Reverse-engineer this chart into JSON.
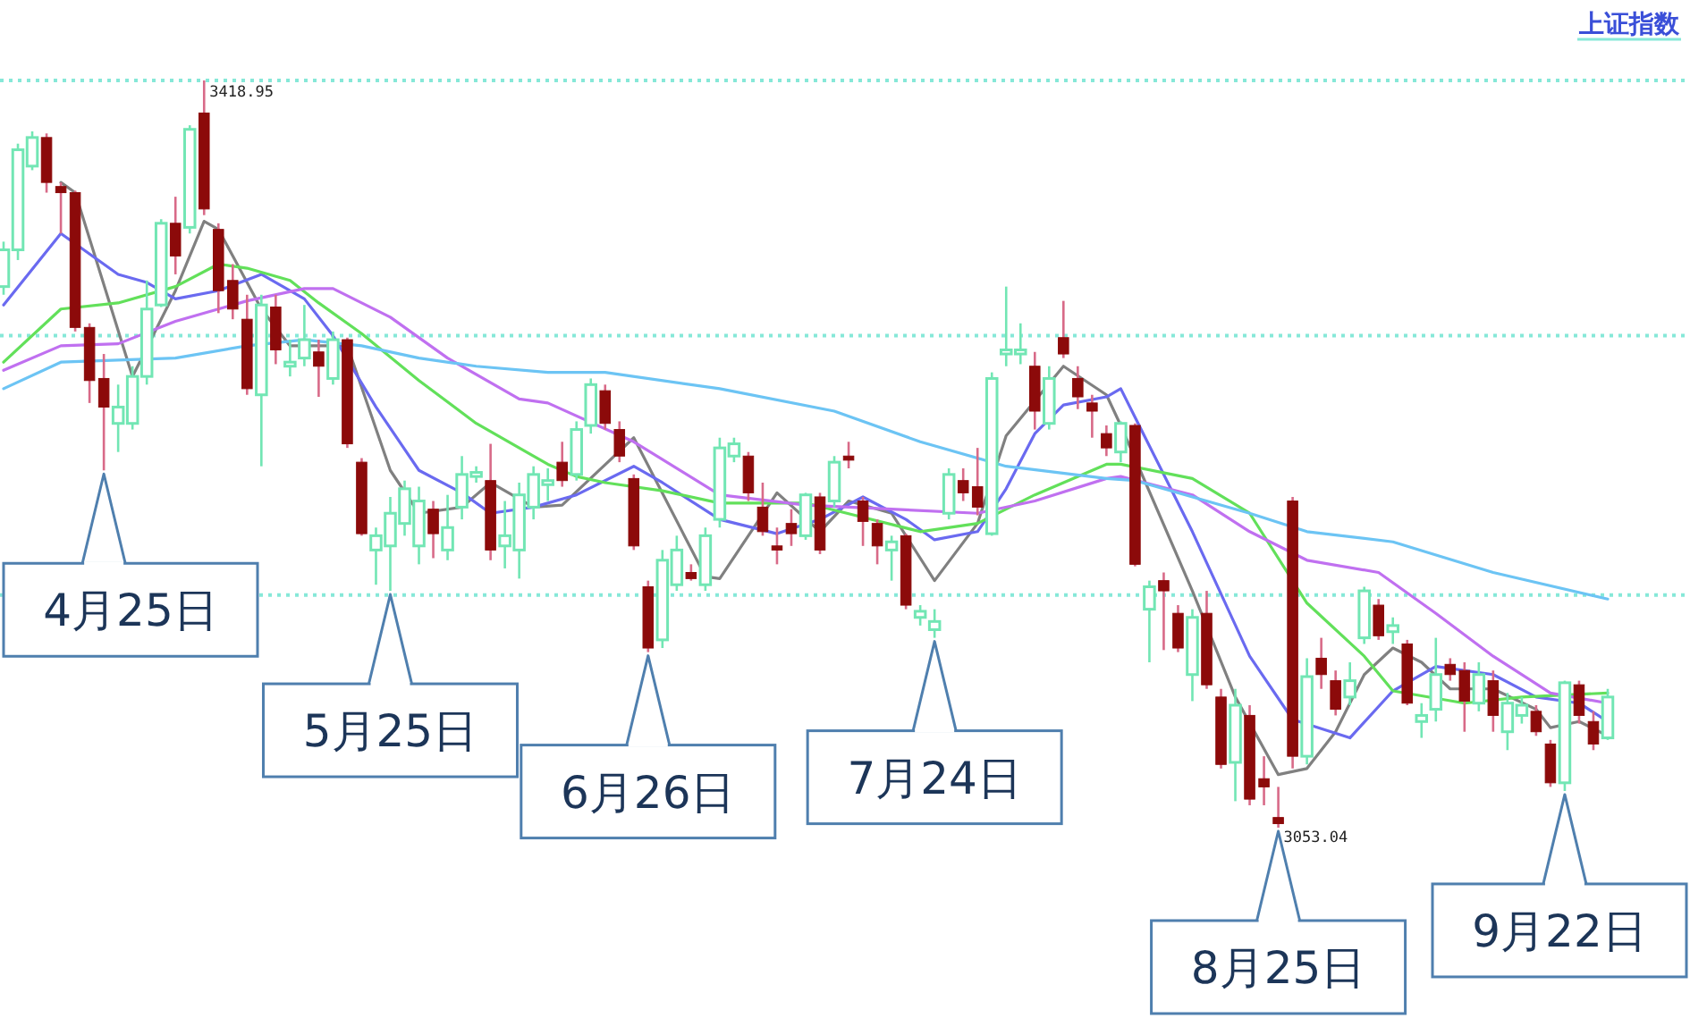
{
  "chart_data": {
    "type": "candlestick",
    "title": "上证指数",
    "categories": [
      null,
      null,
      null,
      null,
      null,
      null,
      null,
      null,
      null,
      null,
      null,
      null,
      null,
      null,
      null,
      null,
      null,
      null,
      null,
      null,
      null,
      null,
      null,
      null,
      null,
      null,
      null,
      null,
      null,
      null,
      null,
      null,
      null,
      null,
      null,
      null,
      null,
      null,
      null,
      null,
      null,
      null,
      null,
      null,
      null,
      null,
      null,
      null,
      null,
      null,
      null,
      null,
      null,
      null,
      null,
      null,
      null,
      null,
      null,
      null,
      null,
      null,
      null,
      null,
      null,
      null,
      null,
      null,
      null,
      null,
      null,
      null,
      null,
      null,
      null,
      null,
      null,
      null,
      null,
      null,
      null,
      null,
      null,
      null,
      null,
      null,
      null,
      null,
      null,
      null,
      null,
      null,
      null,
      null,
      null,
      null,
      null,
      null,
      null,
      null,
      null,
      null,
      null,
      null,
      null,
      null,
      null,
      null,
      null,
      null,
      null,
      null,
      null
    ],
    "ohlc": [
      [
        3318,
        3340,
        3314,
        3336
      ],
      [
        3336,
        3388,
        3331,
        3385
      ],
      [
        3377,
        3394,
        3375,
        3391
      ],
      [
        3391,
        3393,
        3364,
        3369
      ],
      [
        3367,
        3369,
        3344,
        3364
      ],
      [
        3364,
        3365,
        3296,
        3298
      ],
      [
        3298,
        3300,
        3261,
        3272
      ],
      [
        3273,
        3285,
        3228,
        3259
      ],
      [
        3251,
        3270,
        3237,
        3259
      ],
      [
        3251,
        3279,
        3248,
        3274
      ],
      [
        3274,
        3321,
        3270,
        3307
      ],
      [
        3309,
        3351,
        3308,
        3349
      ],
      [
        3349,
        3362,
        3324,
        3333
      ],
      [
        3347,
        3397,
        3344,
        3395
      ],
      [
        3403,
        3418.95,
        3353,
        3356
      ],
      [
        3346,
        3349,
        3305,
        3316
      ],
      [
        3321,
        3329,
        3302,
        3307
      ],
      [
        3302,
        3314,
        3265,
        3268
      ],
      [
        3265,
        3314,
        3230,
        3309
      ],
      [
        3308,
        3314,
        3280,
        3287
      ],
      [
        3279,
        3292,
        3274,
        3281
      ],
      [
        3283,
        3309,
        3279,
        3292
      ],
      [
        3286,
        3292,
        3264,
        3279
      ],
      [
        3273,
        3296,
        3270,
        3292
      ],
      [
        3292,
        3293,
        3239,
        3241
      ],
      [
        3232,
        3234,
        3196,
        3197
      ],
      [
        3189,
        3200,
        3172,
        3196
      ],
      [
        3191,
        3215,
        3169,
        3207
      ],
      [
        3202,
        3223,
        3196,
        3219
      ],
      [
        3191,
        3220,
        3182,
        3213
      ],
      [
        3209,
        3213,
        3185,
        3197
      ],
      [
        3189,
        3216,
        3184,
        3200
      ],
      [
        3210,
        3235,
        3204,
        3226
      ],
      [
        3225,
        3230,
        3222,
        3227
      ],
      [
        3223,
        3241,
        3184,
        3189
      ],
      [
        3191,
        3213,
        3180,
        3196
      ],
      [
        3189,
        3222,
        3175,
        3216
      ],
      [
        3210,
        3230,
        3204,
        3226
      ],
      [
        3221,
        3229,
        3213,
        3223
      ],
      [
        3232,
        3242,
        3220,
        3223
      ],
      [
        3226,
        3252,
        3223,
        3248
      ],
      [
        3250,
        3273,
        3246,
        3270
      ],
      [
        3267,
        3270,
        3248,
        3251
      ],
      [
        3248,
        3252,
        3232,
        3235
      ],
      [
        3224,
        3226,
        3189,
        3191
      ],
      [
        3171,
        3174,
        3139,
        3141
      ],
      [
        3145,
        3189,
        3141,
        3184
      ],
      [
        3172,
        3196,
        3169,
        3189
      ],
      [
        3178,
        3182,
        3174,
        3175
      ],
      [
        3172,
        3200,
        3169,
        3196
      ],
      [
        3204,
        3244,
        3200,
        3239
      ],
      [
        3235,
        3244,
        3232,
        3241
      ],
      [
        3235,
        3237,
        3213,
        3217
      ],
      [
        3210,
        3222,
        3196,
        3198
      ],
      [
        3191,
        3200,
        3182,
        3189
      ],
      [
        3202,
        3209,
        3191,
        3197
      ],
      [
        3196,
        3217,
        3194,
        3216
      ],
      [
        3215,
        3217,
        3187,
        3189
      ],
      [
        3213,
        3235,
        3210,
        3232
      ],
      [
        3235,
        3242,
        3229,
        3233
      ],
      [
        3213,
        3215,
        3191,
        3203
      ],
      [
        3202,
        3204,
        3182,
        3191
      ],
      [
        3189,
        3196,
        3174,
        3193
      ],
      [
        3196,
        3197,
        3160,
        3162
      ],
      [
        3156,
        3162,
        3152,
        3159
      ],
      [
        3150,
        3160,
        3146,
        3154
      ],
      [
        3207,
        3229,
        3204,
        3226
      ],
      [
        3223,
        3229,
        3213,
        3217
      ],
      [
        3220,
        3239,
        3206,
        3210
      ],
      [
        3197,
        3276,
        3196,
        3273
      ],
      [
        3285,
        3318,
        3279,
        3287
      ],
      [
        3285,
        3300,
        3280,
        3287
      ],
      [
        3279,
        3286,
        3248,
        3257
      ],
      [
        3251,
        3279,
        3248,
        3273
      ],
      [
        3293,
        3311,
        3283,
        3285
      ],
      [
        3273,
        3279,
        3258,
        3264
      ],
      [
        3261,
        3265,
        3244,
        3257
      ],
      [
        3246,
        3250,
        3235,
        3239
      ],
      [
        3237,
        3252,
        3232,
        3251
      ],
      [
        3250,
        3251,
        3181,
        3182
      ],
      [
        3160,
        3174,
        3134,
        3171
      ],
      [
        3174,
        3178,
        3140,
        3169
      ],
      [
        3158,
        3162,
        3139,
        3141
      ],
      [
        3128,
        3160,
        3115,
        3156
      ],
      [
        3158,
        3169,
        3121,
        3123
      ],
      [
        3117,
        3121,
        3082,
        3084
      ],
      [
        3085,
        3121,
        3066,
        3113
      ],
      [
        3108,
        3113,
        3064,
        3067
      ],
      [
        3077,
        3088,
        3064,
        3073
      ],
      [
        3058,
        3073,
        3053.04,
        3055
      ],
      [
        3213,
        3215,
        3082,
        3088
      ],
      [
        3088,
        3136,
        3084,
        3127
      ],
      [
        3136,
        3146,
        3121,
        3128
      ],
      [
        3125,
        3130,
        3108,
        3111
      ],
      [
        3117,
        3134,
        3113,
        3125
      ],
      [
        3146,
        3171,
        3143,
        3169
      ],
      [
        3162,
        3165,
        3145,
        3147
      ],
      [
        3149,
        3156,
        3143,
        3152
      ],
      [
        3143,
        3145,
        3113,
        3114
      ],
      [
        3105,
        3114,
        3097,
        3108
      ],
      [
        3111,
        3146,
        3105,
        3128
      ],
      [
        3133,
        3136,
        3125,
        3128
      ],
      [
        3130,
        3134,
        3100,
        3115
      ],
      [
        3114,
        3134,
        3110,
        3128
      ],
      [
        3125,
        3130,
        3100,
        3108
      ],
      [
        3100,
        3119,
        3091,
        3114
      ],
      [
        3108,
        3117,
        3104,
        3113
      ],
      [
        3110,
        3113,
        3098,
        3100
      ],
      [
        3094,
        3096,
        3073,
        3075
      ],
      [
        3075,
        3125,
        3071,
        3124
      ],
      [
        3123,
        3125,
        3104,
        3108
      ],
      [
        3105,
        3110,
        3091,
        3094
      ],
      [
        3097,
        3121,
        3096,
        3117
      ]
    ],
    "colors": [
      "#72e6b4",
      "#72e6b4",
      "#72e6b4",
      "#8c0a0a",
      "#8c0a0a",
      "#8c0a0a",
      "#8c0a0a",
      "#8c0a0a",
      "#72e6b4",
      "#72e6b4",
      "#72e6b4",
      "#72e6b4",
      "#8c0a0a",
      "#72e6b4",
      "#8c0a0a",
      "#8c0a0a",
      "#8c0a0a",
      "#8c0a0a",
      "#72e6b4",
      "#8c0a0a",
      "#72e6b4",
      "#72e6b4",
      "#8c0a0a",
      "#72e6b4",
      "#8c0a0a",
      "#8c0a0a",
      "#72e6b4",
      "#72e6b4",
      "#72e6b4",
      "#72e6b4",
      "#8c0a0a",
      "#72e6b4",
      "#72e6b4",
      "#72e6b4",
      "#8c0a0a",
      "#72e6b4",
      "#72e6b4",
      "#72e6b4",
      "#72e6b4",
      "#8c0a0a",
      "#72e6b4",
      "#72e6b4",
      "#8c0a0a",
      "#8c0a0a",
      "#8c0a0a",
      "#8c0a0a",
      "#72e6b4",
      "#72e6b4",
      "#8c0a0a",
      "#72e6b4",
      "#72e6b4",
      "#72e6b4",
      "#8c0a0a",
      "#8c0a0a",
      "#8c0a0a",
      "#8c0a0a",
      "#72e6b4",
      "#8c0a0a",
      "#72e6b4",
      "#8c0a0a",
      "#8c0a0a",
      "#8c0a0a",
      "#72e6b4",
      "#8c0a0a",
      "#72e6b4",
      "#72e6b4",
      "#72e6b4",
      "#8c0a0a",
      "#8c0a0a",
      "#72e6b4",
      "#72e6b4",
      "#72e6b4",
      "#8c0a0a",
      "#72e6b4",
      "#8c0a0a",
      "#8c0a0a",
      "#8c0a0a",
      "#8c0a0a",
      "#72e6b4",
      "#8c0a0a",
      "#72e6b4",
      "#8c0a0a",
      "#8c0a0a",
      "#72e6b4",
      "#8c0a0a",
      "#8c0a0a",
      "#72e6b4",
      "#8c0a0a",
      "#8c0a0a",
      "#8c0a0a",
      "#8c0a0a",
      "#72e6b4",
      "#8c0a0a",
      "#8c0a0a",
      "#72e6b4",
      "#72e6b4",
      "#8c0a0a",
      "#72e6b4",
      "#8c0a0a",
      "#72e6b4",
      "#72e6b4",
      "#8c0a0a",
      "#8c0a0a",
      "#72e6b4",
      "#8c0a0a",
      "#72e6b4",
      "#72e6b4",
      "#8c0a0a",
      "#8c0a0a",
      "#72e6b4",
      "#8c0a0a",
      "#8c0a0a",
      "#72e6b4"
    ],
    "value_labels": [
      null,
      null,
      null,
      null,
      null,
      null,
      null,
      null,
      null,
      null,
      null,
      null,
      null,
      null,
      "3418.95",
      null,
      null,
      null,
      null,
      null,
      null,
      null,
      null,
      null,
      null,
      null,
      null,
      null,
      null,
      null,
      null,
      null,
      null,
      null,
      null,
      null,
      null,
      null,
      null,
      null,
      null,
      null,
      null,
      null,
      null,
      null,
      null,
      null,
      null,
      null,
      null,
      null,
      null,
      null,
      null,
      null,
      null,
      null,
      null,
      null,
      null,
      null,
      null,
      null,
      null,
      null,
      null,
      null,
      null,
      null,
      null,
      null,
      null,
      null,
      null,
      null,
      null,
      null,
      null,
      null,
      null,
      null,
      null,
      null,
      null,
      null,
      null,
      null,
      null,
      "3053.04",
      null,
      null,
      null,
      null,
      null,
      null,
      null,
      null,
      null,
      null,
      null,
      null,
      null,
      null,
      null,
      null,
      null,
      null,
      null,
      null,
      null,
      null,
      null
    ],
    "yticks": [
      {
        "value": 3419,
        "label": null
      },
      {
        "value": 3294,
        "label": null
      },
      {
        "value": 3167,
        "label": null
      }
    ],
    "grid": "y",
    "annotations": [
      "4月25日",
      "5月25日",
      "6月26日",
      "7月24日",
      "8月25日",
      "9月22日"
    ],
    "series": [
      {
        "type": "line",
        "color": "#808080",
        "values": [
          null,
          null,
          null,
          null,
          3369,
          3364,
          null,
          null,
          null,
          3274,
          null,
          null,
          3316,
          null,
          3350,
          3346,
          null,
          null,
          3307,
          null,
          3289,
          null,
          3289,
          null,
          3289,
          null,
          null,
          3228,
          null,
          3207,
          null,
          null,
          3210,
          null,
          3222,
          null,
          null,
          3210,
          null,
          3211,
          null,
          null,
          null,
          null,
          3244,
          null,
          null,
          null,
          null,
          3176,
          3175,
          null,
          null,
          null,
          3217,
          null,
          null,
          3198,
          null,
          3213,
          null,
          null,
          3207,
          null,
          null,
          3174,
          null,
          null,
          3202,
          null,
          3245,
          null,
          null,
          null,
          3279,
          null,
          null,
          3265,
          3250,
          null,
          null,
          null,
          null,
          3169,
          null,
          null,
          3117,
          null,
          null,
          3079,
          null,
          3082,
          null,
          3100,
          null,
          3128,
          null,
          3141,
          null,
          3134,
          null,
          3121,
          null,
          null,
          3121,
          null,
          null,
          3111,
          3102,
          null,
          3105,
          null,
          3098
        ]
      },
      {
        "type": "line",
        "color": "#6a6af0",
        "values": [
          3309,
          null,
          null,
          null,
          3344,
          null,
          null,
          null,
          3324,
          null,
          3320,
          null,
          3312,
          null,
          null,
          3316,
          null,
          null,
          3324,
          null,
          null,
          3312,
          null,
          3294,
          null,
          null,
          3259,
          null,
          null,
          3228,
          null,
          null,
          3217,
          null,
          3207,
          null,
          null,
          3210,
          null,
          null,
          3216,
          null,
          null,
          null,
          3230,
          null,
          3222,
          null,
          null,
          null,
          3204,
          null,
          null,
          null,
          3197,
          null,
          null,
          3204,
          null,
          null,
          3215,
          null,
          null,
          3204,
          null,
          3194,
          null,
          null,
          3198,
          null,
          3219,
          null,
          3246,
          null,
          3260,
          null,
          null,
          3264,
          3268,
          null,
          null,
          null,
          null,
          3198,
          null,
          null,
          null,
          3137,
          null,
          null,
          3106,
          null,
          null,
          null,
          3097,
          null,
          null,
          3120,
          null,
          null,
          3132,
          null,
          null,
          null,
          3128,
          null,
          null,
          3117,
          null,
          null,
          3114,
          null,
          3105
        ]
      },
      {
        "type": "line",
        "color": "#62e05a",
        "values": [
          3281,
          null,
          null,
          null,
          3307,
          null,
          null,
          null,
          3310,
          null,
          null,
          null,
          3318,
          null,
          null,
          3329,
          null,
          3327,
          null,
          null,
          3321,
          null,
          3310,
          null,
          null,
          3295,
          null,
          null,
          null,
          3272,
          null,
          null,
          null,
          3251,
          null,
          null,
          null,
          null,
          3231,
          null,
          3225,
          null,
          3222,
          null,
          null,
          null,
          3218,
          null,
          null,
          null,
          3212,
          null,
          null,
          null,
          null,
          null,
          3212,
          null,
          null,
          null,
          3205,
          null,
          null,
          null,
          3198,
          null,
          null,
          null,
          3202,
          null,
          null,
          null,
          3216,
          null,
          null,
          null,
          null,
          3231,
          3231,
          null,
          null,
          null,
          null,
          3224,
          null,
          null,
          null,
          3207,
          null,
          null,
          null,
          3163,
          null,
          null,
          null,
          3137,
          null,
          3120,
          null,
          null,
          null,
          null,
          3114,
          null,
          null,
          null,
          3117,
          null,
          null,
          null,
          null,
          null,
          3119
        ]
      },
      {
        "type": "line",
        "color": "#c070f0",
        "values": [
          3277,
          null,
          null,
          null,
          3289,
          null,
          null,
          null,
          3290,
          null,
          null,
          null,
          3301,
          null,
          null,
          null,
          null,
          3311,
          null,
          null,
          null,
          3317,
          null,
          3317,
          null,
          null,
          null,
          3303,
          null,
          null,
          null,
          3283,
          null,
          null,
          null,
          null,
          3263,
          null,
          3261,
          null,
          null,
          null,
          null,
          null,
          3242,
          null,
          null,
          null,
          null,
          null,
          3216,
          null,
          null,
          null,
          null,
          null,
          3211,
          null,
          null,
          null,
          null,
          null,
          3209,
          null,
          null,
          null,
          null,
          null,
          3207,
          null,
          null,
          null,
          3213,
          null,
          null,
          null,
          null,
          3224,
          3225,
          null,
          null,
          null,
          null,
          3216,
          null,
          null,
          null,
          3198,
          null,
          null,
          null,
          3184,
          null,
          null,
          null,
          null,
          3178,
          null,
          null,
          null,
          3158,
          null,
          null,
          null,
          3137,
          null,
          null,
          null,
          3119,
          null,
          null,
          null,
          3114
        ]
      },
      {
        "type": "line",
        "color": "#6cc4f4",
        "values": [
          3268,
          null,
          null,
          null,
          3281,
          null,
          null,
          null,
          null,
          null,
          null,
          null,
          3283,
          null,
          null,
          null,
          null,
          3289,
          null,
          null,
          null,
          3292,
          null,
          null,
          null,
          3289,
          null,
          null,
          null,
          3283,
          null,
          null,
          null,
          3279,
          null,
          null,
          null,
          null,
          3276,
          null,
          null,
          null,
          3276,
          null,
          null,
          null,
          null,
          null,
          null,
          null,
          3268,
          null,
          null,
          null,
          null,
          null,
          null,
          null,
          3257,
          null,
          null,
          null,
          null,
          null,
          3242,
          null,
          null,
          null,
          null,
          null,
          3230,
          null,
          null,
          null,
          null,
          null,
          null,
          3224,
          null,
          3223,
          null,
          null,
          null,
          null,
          null,
          null,
          null,
          3207,
          null,
          null,
          null,
          3198,
          null,
          null,
          null,
          null,
          null,
          3193,
          null,
          null,
          null,
          null,
          null,
          null,
          3178,
          null,
          null,
          null,
          null,
          null,
          null,
          null,
          3165
        ]
      }
    ]
  }
}
